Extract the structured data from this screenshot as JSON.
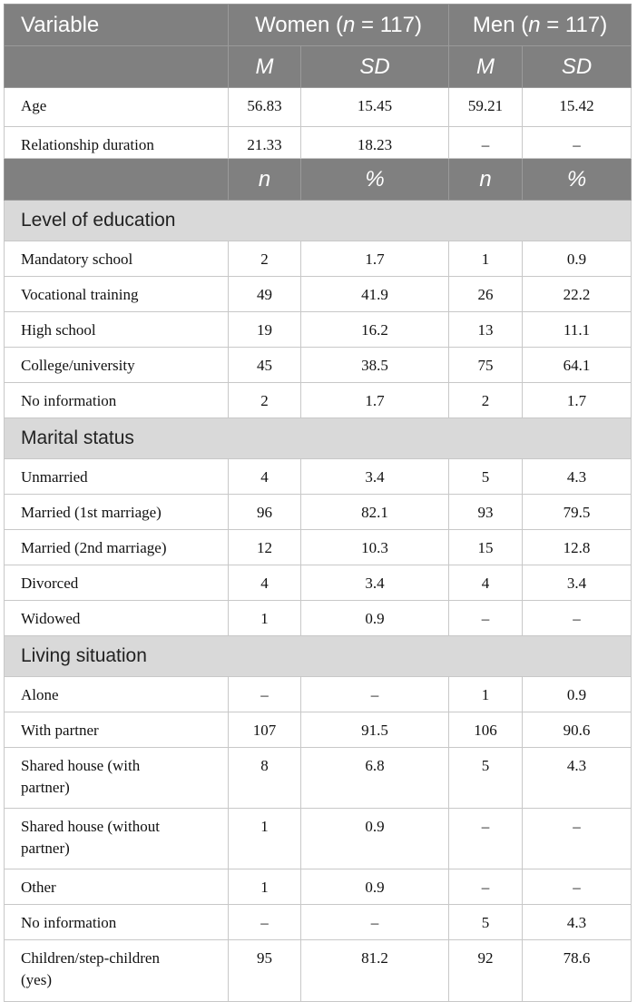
{
  "table": {
    "header": {
      "variable": "Variable",
      "groups": [
        [
          "Women (",
          "n",
          " = 117)"
        ],
        [
          "Men (",
          "n",
          " = 117)"
        ]
      ],
      "stats": [
        "M",
        "SD",
        "M",
        "SD"
      ]
    },
    "continuous": [
      [
        "Age",
        "56.83",
        "15.45",
        "59.21",
        "15.42"
      ],
      [
        "Relationship duration",
        "21.33",
        "18.23",
        "–",
        "–"
      ]
    ],
    "count_header": [
      "n",
      "%",
      "n",
      "%"
    ],
    "sections": [
      {
        "title": "Level of education",
        "rows": [
          [
            "Mandatory school",
            "2",
            "1.7",
            "1",
            "0.9"
          ],
          [
            "Vocational training",
            "49",
            "41.9",
            "26",
            "22.2"
          ],
          [
            "High school",
            "19",
            "16.2",
            "13",
            "11.1"
          ],
          [
            "College/university",
            "45",
            "38.5",
            "75",
            "64.1"
          ],
          [
            "No information",
            "2",
            "1.7",
            "2",
            "1.7"
          ]
        ]
      },
      {
        "title": "Marital status",
        "rows": [
          [
            "Unmarried",
            "4",
            "3.4",
            "5",
            "4.3"
          ],
          [
            "Married (1st marriage)",
            "96",
            "82.1",
            "93",
            "79.5"
          ],
          [
            "Married (2nd marriage)",
            "12",
            "10.3",
            "15",
            "12.8"
          ],
          [
            "Divorced",
            "4",
            "3.4",
            "4",
            "3.4"
          ],
          [
            "Widowed",
            "1",
            "0.9",
            "–",
            "–"
          ]
        ]
      },
      {
        "title": "Living situation",
        "rows": [
          [
            "Alone",
            "–",
            "–",
            "1",
            "0.9"
          ],
          [
            "With partner",
            "107",
            "91.5",
            "106",
            "90.6"
          ],
          [
            "Shared house (with partner)",
            "8",
            "6.8",
            "5",
            "4.3"
          ],
          [
            "Shared house (without partner)",
            "1",
            "0.9",
            "–",
            "–"
          ],
          [
            "Other",
            "1",
            "0.9",
            "–",
            "–"
          ],
          [
            "No information",
            "–",
            "–",
            "5",
            "4.3"
          ],
          [
            "Children/step-children (yes)",
            "95",
            "81.2",
            "92",
            "78.6"
          ]
        ]
      }
    ]
  }
}
